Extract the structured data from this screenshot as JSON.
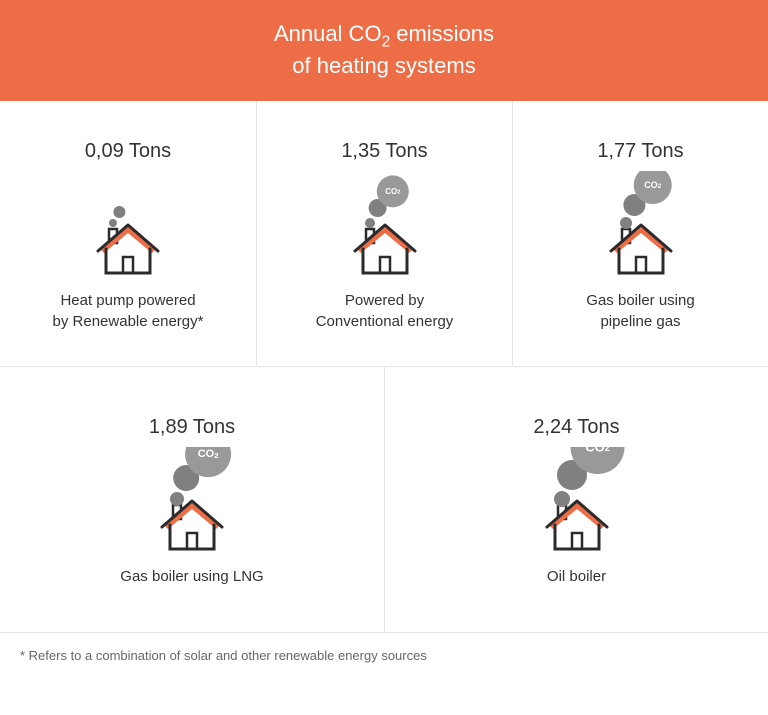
{
  "header": {
    "title_html": "Annual CO<sub>2</sub> emissions<br>of heating systems",
    "background_color": "#ed6d46",
    "text_color": "#ffffff"
  },
  "items": [
    {
      "value": "0,09 Tons",
      "label": "Heat pump powered\nby Renewable energy*",
      "bubble_size": 0
    },
    {
      "value": "1,35 Tons",
      "label": "Powered by\nConventional energy",
      "bubble_size": 1
    },
    {
      "value": "1,77 Tons",
      "label": "Gas boiler using\npipeline gas",
      "bubble_size": 2
    },
    {
      "value": "1,89 Tons",
      "label": "Gas boiler using LNG",
      "bubble_size": 3
    },
    {
      "value": "2,24 Tons",
      "label": "Oil boiler",
      "bubble_size": 4
    }
  ],
  "footnote": "* Refers to a combination of solar and other renewable energy sources",
  "colors": {
    "house_stroke": "#2b2b2b",
    "roof_accent": "#ed6d46",
    "bubble_fill": "#999999",
    "bubble_mid": "#808080",
    "divider": "#e5e5e5",
    "text": "#333333"
  },
  "bubble_scales": {
    "0": {
      "r_big": 0,
      "r_mid": 6,
      "r_small": 4,
      "show_text": false,
      "font": 8
    },
    "1": {
      "r_big": 16,
      "r_mid": 9,
      "r_small": 5,
      "show_text": true,
      "font": 8
    },
    "2": {
      "r_big": 19,
      "r_mid": 11,
      "r_small": 6,
      "show_text": true,
      "font": 9
    },
    "3": {
      "r_big": 23,
      "r_mid": 13,
      "r_small": 7,
      "show_text": true,
      "font": 11
    },
    "4": {
      "r_big": 27,
      "r_mid": 15,
      "r_small": 8,
      "show_text": true,
      "font": 13
    }
  }
}
